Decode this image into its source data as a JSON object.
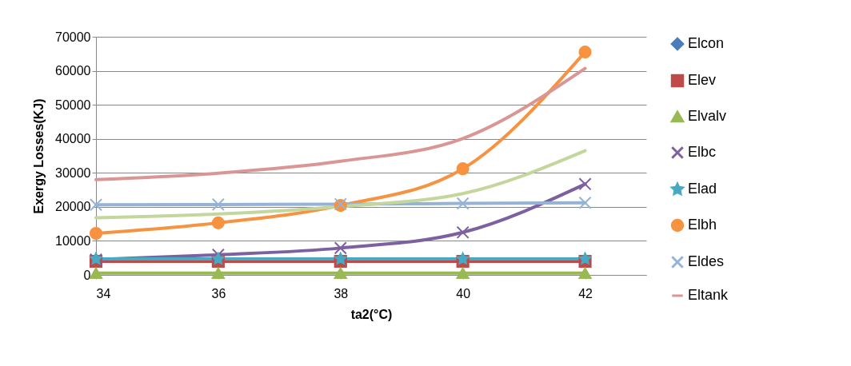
{
  "chart_data": {
    "type": "line",
    "xlabel": "ta2(°C)",
    "ylabel": "Exergy Losses(KJ)",
    "x": [
      34,
      36,
      38,
      40,
      42
    ],
    "xlim": [
      34,
      43
    ],
    "xticks": [
      34,
      36,
      38,
      40,
      42
    ],
    "ylim": [
      0,
      70000
    ],
    "yticks": [
      0,
      10000,
      20000,
      30000,
      40000,
      50000,
      60000,
      70000
    ],
    "grid": "y",
    "legend": "right",
    "series": [
      {
        "name": "Elcon",
        "color": "#4a7ebb",
        "marker": "diamond",
        "values": [
          null,
          null,
          null,
          null,
          null
        ]
      },
      {
        "name": "Elev",
        "color": "#be4b48",
        "marker": "square",
        "values": [
          4000,
          4000,
          4000,
          4000,
          4000
        ]
      },
      {
        "name": "Elvalv",
        "color": "#98b954",
        "marker": "triangle",
        "values": [
          500,
          500,
          500,
          500,
          500
        ]
      },
      {
        "name": "Elbc",
        "color": "#7d60a0",
        "marker": "cross",
        "values": [
          4500,
          5900,
          7900,
          12500,
          26700
        ]
      },
      {
        "name": "Elad",
        "color": "#46aac5",
        "marker": "star",
        "values": [
          4700,
          4700,
          4700,
          4700,
          4700
        ]
      },
      {
        "name": "Elbh",
        "color": "#f69240",
        "marker": "circle",
        "values": [
          12200,
          15300,
          20400,
          31200,
          65500
        ]
      },
      {
        "name": "Eldes",
        "color": "#95b3d7",
        "marker": "cross",
        "values": [
          20600,
          20700,
          20800,
          21000,
          21200
        ]
      },
      {
        "name": "Eltank",
        "color": "#d99694",
        "marker": "none",
        "values": [
          28000,
          29900,
          33400,
          40100,
          60700
        ]
      },
      {
        "color": "#c3d69b",
        "marker": "none",
        "values": [
          16800,
          17900,
          20100,
          23900,
          36500
        ]
      }
    ]
  }
}
